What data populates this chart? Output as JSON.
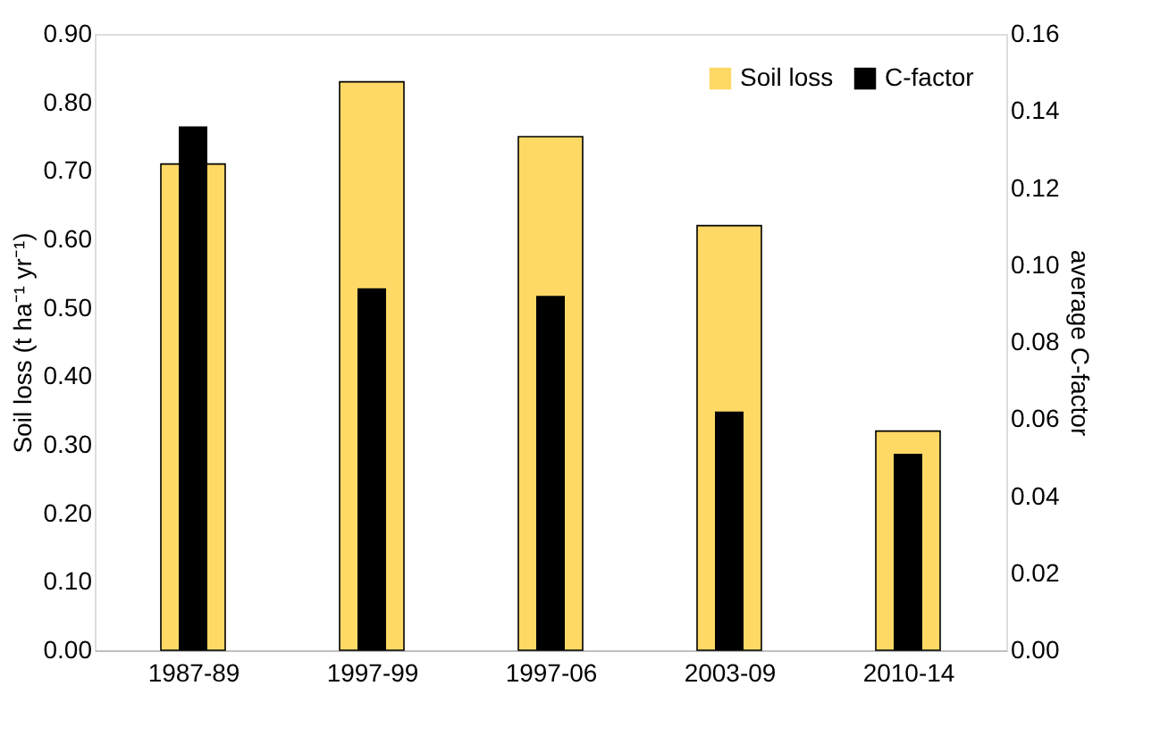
{
  "chart_data": {
    "type": "bar",
    "ylabel": "Soil loss (t ha⁻¹ yr⁻¹)",
    "y2label": "average C-factor",
    "categories": [
      "1987-89",
      "1997-99",
      "1997-06",
      "2003-09",
      "2010-14"
    ],
    "series": [
      {
        "name": "Soil loss",
        "color": "#ffd966",
        "values": [
          0.71,
          0.83,
          0.75,
          0.62,
          0.32
        ]
      },
      {
        "name": "C-factor",
        "color": "#000000",
        "axis": "y2",
        "values": [
          0.136,
          0.094,
          0.092,
          0.062,
          0.051
        ]
      }
    ],
    "ylim": [
      0,
      0.9
    ],
    "yticks": [
      {
        "value": 0,
        "label": "0.00"
      },
      {
        "value": 0.1,
        "label": "0.10"
      },
      {
        "value": 0.2,
        "label": "0.20"
      },
      {
        "value": 0.3,
        "label": "0.30"
      },
      {
        "value": 0.4,
        "label": "0.40"
      },
      {
        "value": 0.5,
        "label": "0.50"
      },
      {
        "value": 0.6,
        "label": "0.60"
      },
      {
        "value": 0.7,
        "label": "0.70"
      },
      {
        "value": 0.8,
        "label": "0.80"
      },
      {
        "value": 0.9,
        "label": "0.90"
      }
    ],
    "y2lim": [
      0,
      0.16
    ],
    "y2ticks": [
      {
        "value": 0,
        "label": "0.00"
      },
      {
        "value": 0.02,
        "label": "0.02"
      },
      {
        "value": 0.04,
        "label": "0.04"
      },
      {
        "value": 0.06,
        "label": "0.06"
      },
      {
        "value": 0.08,
        "label": "0.08"
      },
      {
        "value": 0.1,
        "label": "0.10"
      },
      {
        "value": 0.12,
        "label": "0.12"
      },
      {
        "value": 0.14,
        "label": "0.14"
      },
      {
        "value": 0.16,
        "label": "0.16"
      }
    ],
    "legend": "top right",
    "grid": false
  }
}
